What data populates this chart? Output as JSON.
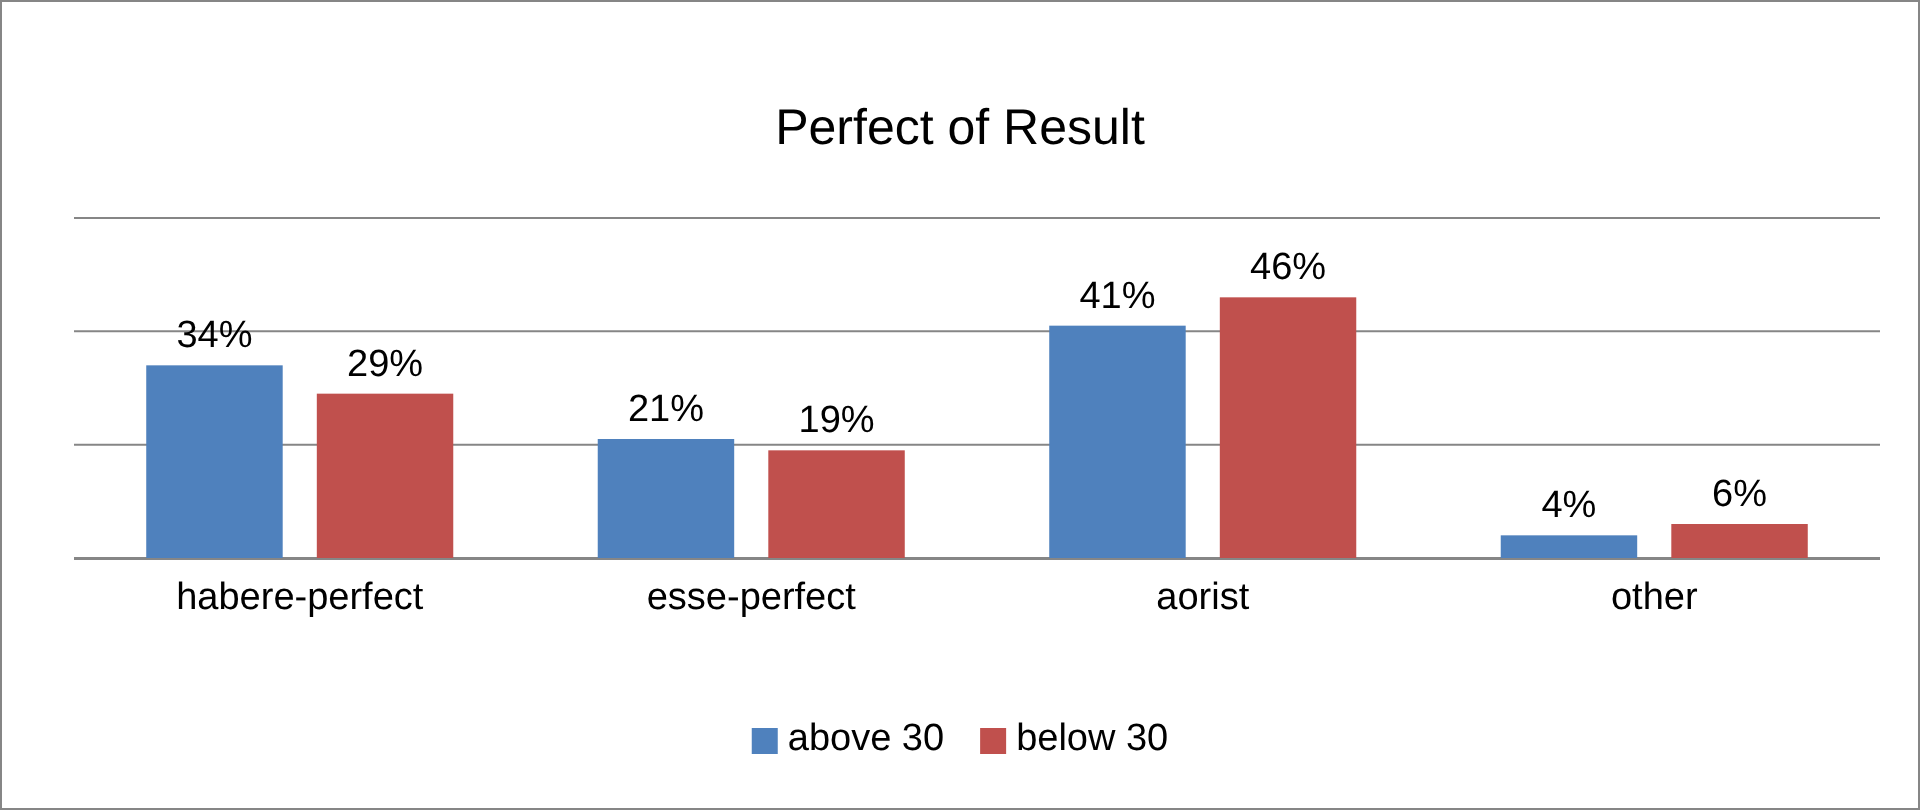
{
  "chart_data": {
    "type": "bar",
    "title": "Perfect of Result",
    "categories": [
      "habere-perfect",
      "esse-perfect",
      "aorist",
      "other"
    ],
    "series": [
      {
        "name": "above 30",
        "color": "#4f81bd",
        "values": [
          34,
          21,
          41,
          4
        ],
        "value_labels": [
          "34%",
          "21%",
          "41%",
          "4%"
        ]
      },
      {
        "name": "below 30",
        "color": "#c0504d",
        "values": [
          29,
          19,
          46,
          6
        ],
        "value_labels": [
          "29%",
          "19%",
          "46%",
          "6%"
        ]
      }
    ],
    "ylim": [
      0,
      60
    ],
    "yticks": [
      {
        "value": 0,
        "label": null
      },
      {
        "value": 20,
        "label": null
      },
      {
        "value": 40,
        "label": null
      },
      {
        "value": 60,
        "label": null
      }
    ],
    "grid": "y",
    "tick_labels": "x",
    "legend": "bottom"
  }
}
